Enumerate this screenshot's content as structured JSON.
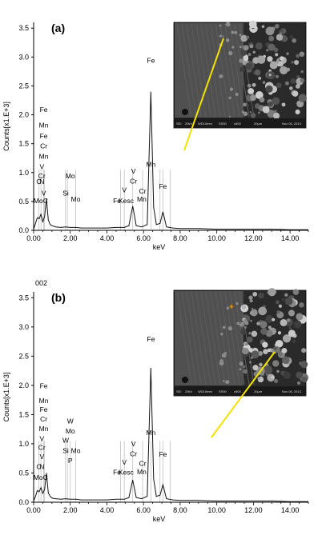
{
  "chart_data": [
    {
      "type": "line",
      "panel_label": "(a)",
      "header_text": "",
      "ylabel": "Counts[x1.E+3]",
      "xlabel": "keV",
      "xlim": [
        0,
        15
      ],
      "ylim": [
        0,
        3.6
      ],
      "xticks": [
        "0.00",
        "2.00",
        "4.00",
        "6.00",
        "8.00",
        "10.00",
        "12.00",
        "14.00"
      ],
      "yticks": [
        "0.0",
        "0.5",
        "1.0",
        "1.5",
        "2.0",
        "2.5",
        "3.0",
        "3.5"
      ],
      "spectrum": [
        [
          0,
          0.02
        ],
        [
          0.1,
          0.12
        ],
        [
          0.2,
          0.22
        ],
        [
          0.3,
          0.2
        ],
        [
          0.4,
          0.28
        ],
        [
          0.5,
          0.15
        ],
        [
          0.6,
          0.24
        ],
        [
          0.7,
          0.55
        ],
        [
          0.75,
          0.35
        ],
        [
          0.8,
          0.18
        ],
        [
          0.9,
          0.1
        ],
        [
          1.0,
          0.08
        ],
        [
          1.2,
          0.06
        ],
        [
          1.5,
          0.05
        ],
        [
          1.75,
          0.06
        ],
        [
          2.0,
          0.05
        ],
        [
          2.3,
          0.05
        ],
        [
          2.6,
          0.04
        ],
        [
          3.0,
          0.04
        ],
        [
          3.5,
          0.04
        ],
        [
          4.0,
          0.04
        ],
        [
          4.5,
          0.05
        ],
        [
          4.95,
          0.05
        ],
        [
          5.2,
          0.08
        ],
        [
          5.41,
          0.42
        ],
        [
          5.6,
          0.08
        ],
        [
          5.9,
          0.06
        ],
        [
          6.2,
          0.1
        ],
        [
          6.4,
          2.4
        ],
        [
          6.55,
          0.4
        ],
        [
          6.7,
          0.1
        ],
        [
          6.9,
          0.12
        ],
        [
          7.06,
          0.32
        ],
        [
          7.25,
          0.06
        ],
        [
          7.6,
          0.04
        ],
        [
          8.0,
          0.03
        ],
        [
          9.0,
          0.03
        ],
        [
          10.0,
          0.02
        ],
        [
          11.0,
          0.02
        ],
        [
          12.0,
          0.02
        ],
        [
          13.0,
          0.02
        ],
        [
          14.0,
          0.01
        ],
        [
          15.0,
          0.01
        ]
      ],
      "markers": [
        {
          "text": "Fe",
          "x": 0.55,
          "y": 2.05
        },
        {
          "text": "Mn",
          "x": 0.55,
          "y": 1.78
        },
        {
          "text": "Fe",
          "x": 0.55,
          "y": 1.59
        },
        {
          "text": "Cr",
          "x": 0.55,
          "y": 1.42
        },
        {
          "text": "Mn",
          "x": 0.55,
          "y": 1.24
        },
        {
          "text": "V",
          "x": 0.45,
          "y": 1.06
        },
        {
          "text": "Cr",
          "x": 0.45,
          "y": 0.9
        },
        {
          "text": "C",
          "x": 0.28,
          "y": 0.8
        },
        {
          "text": "N",
          "x": 0.45,
          "y": 0.8
        },
        {
          "text": "V",
          "x": 0.55,
          "y": 0.6
        },
        {
          "text": "Mo",
          "x": 0.25,
          "y": 0.47
        },
        {
          "text": "C",
          "x": 0.65,
          "y": 0.47
        },
        {
          "text": "Mo",
          "x": 2.0,
          "y": 0.9
        },
        {
          "text": "Si",
          "x": 1.75,
          "y": 0.6
        },
        {
          "text": "Mo",
          "x": 2.3,
          "y": 0.5
        },
        {
          "text": "Fe",
          "x": 4.55,
          "y": 0.47
        },
        {
          "text": "Kesc",
          "x": 5.05,
          "y": 0.47
        },
        {
          "text": "V",
          "x": 4.95,
          "y": 0.66
        },
        {
          "text": "V",
          "x": 5.45,
          "y": 0.98
        },
        {
          "text": "Cr",
          "x": 5.45,
          "y": 0.81
        },
        {
          "text": "Cr",
          "x": 5.95,
          "y": 0.64
        },
        {
          "text": "Mn",
          "x": 5.9,
          "y": 0.5
        },
        {
          "text": "Fe",
          "x": 6.4,
          "y": 2.9
        },
        {
          "text": "Mn",
          "x": 6.4,
          "y": 1.1
        },
        {
          "text": "Fe",
          "x": 7.06,
          "y": 0.72
        }
      ],
      "lines": [
        0.28,
        0.4,
        0.55,
        0.6,
        1.74,
        1.84,
        2.3,
        4.75,
        4.95,
        5.41,
        5.95,
        6.4,
        6.9,
        7.06,
        7.45
      ],
      "sem_image": {
        "scalebar": "",
        "has_marker": false,
        "info": [
          "SEI",
          "20kV",
          "WD10mm",
          "SS50",
          "x500",
          "20μm",
          "Nov 06, 2013"
        ]
      }
    },
    {
      "type": "line",
      "panel_label": "(b)",
      "header_text": "002",
      "ylabel": "Counts[x1.E+3]",
      "xlabel": "keV",
      "xlim": [
        0,
        15
      ],
      "ylim": [
        0,
        3.6
      ],
      "xticks": [
        "0.00",
        "2.00",
        "4.00",
        "6.00",
        "8.00",
        "10.00",
        "12.00",
        "14.00"
      ],
      "yticks": [
        "0.0",
        "0.5",
        "1.0",
        "1.5",
        "2.0",
        "2.5",
        "3.0",
        "3.5"
      ],
      "spectrum": [
        [
          0,
          0.02
        ],
        [
          0.1,
          0.1
        ],
        [
          0.2,
          0.2
        ],
        [
          0.3,
          0.18
        ],
        [
          0.4,
          0.25
        ],
        [
          0.5,
          0.15
        ],
        [
          0.6,
          0.22
        ],
        [
          0.7,
          0.5
        ],
        [
          0.75,
          0.32
        ],
        [
          0.8,
          0.16
        ],
        [
          0.9,
          0.1
        ],
        [
          1.0,
          0.07
        ],
        [
          1.2,
          0.06
        ],
        [
          1.5,
          0.05
        ],
        [
          1.75,
          0.06
        ],
        [
          2.0,
          0.05
        ],
        [
          2.3,
          0.05
        ],
        [
          2.6,
          0.04
        ],
        [
          3.0,
          0.04
        ],
        [
          3.5,
          0.04
        ],
        [
          4.0,
          0.04
        ],
        [
          4.5,
          0.05
        ],
        [
          4.95,
          0.05
        ],
        [
          5.2,
          0.08
        ],
        [
          5.41,
          0.38
        ],
        [
          5.6,
          0.08
        ],
        [
          5.9,
          0.06
        ],
        [
          6.2,
          0.1
        ],
        [
          6.4,
          2.3
        ],
        [
          6.55,
          0.4
        ],
        [
          6.7,
          0.1
        ],
        [
          6.9,
          0.12
        ],
        [
          7.06,
          0.3
        ],
        [
          7.25,
          0.06
        ],
        [
          7.6,
          0.04
        ],
        [
          8.0,
          0.03
        ],
        [
          9.0,
          0.03
        ],
        [
          10.0,
          0.02
        ],
        [
          11.0,
          0.02
        ],
        [
          12.0,
          0.02
        ],
        [
          13.0,
          0.02
        ],
        [
          14.0,
          0.01
        ],
        [
          15.0,
          0.01
        ]
      ],
      "markers": [
        {
          "text": "Fe",
          "x": 0.55,
          "y": 1.95
        },
        {
          "text": "Mn",
          "x": 0.55,
          "y": 1.7
        },
        {
          "text": "Fe",
          "x": 0.55,
          "y": 1.55
        },
        {
          "text": "Cr",
          "x": 0.55,
          "y": 1.38
        },
        {
          "text": "Mn",
          "x": 0.55,
          "y": 1.22
        },
        {
          "text": "V",
          "x": 0.45,
          "y": 1.05
        },
        {
          "text": "Cr",
          "x": 0.45,
          "y": 0.9
        },
        {
          "text": "V",
          "x": 0.45,
          "y": 0.74
        },
        {
          "text": "C",
          "x": 0.28,
          "y": 0.57
        },
        {
          "text": "N",
          "x": 0.45,
          "y": 0.57
        },
        {
          "text": "Mo",
          "x": 0.25,
          "y": 0.38
        },
        {
          "text": "C",
          "x": 0.65,
          "y": 0.38
        },
        {
          "text": "W",
          "x": 2.0,
          "y": 1.35
        },
        {
          "text": "Mo",
          "x": 2.0,
          "y": 1.18
        },
        {
          "text": "W",
          "x": 1.75,
          "y": 1.02
        },
        {
          "text": "Si",
          "x": 1.75,
          "y": 0.84
        },
        {
          "text": "Mo",
          "x": 2.3,
          "y": 0.84
        },
        {
          "text": "P",
          "x": 2.0,
          "y": 0.67
        },
        {
          "text": "Fe",
          "x": 4.55,
          "y": 0.47
        },
        {
          "text": "Kesc",
          "x": 5.05,
          "y": 0.47
        },
        {
          "text": "V",
          "x": 4.95,
          "y": 0.64
        },
        {
          "text": "V",
          "x": 5.45,
          "y": 0.96
        },
        {
          "text": "Cr",
          "x": 5.45,
          "y": 0.79
        },
        {
          "text": "Cr",
          "x": 5.95,
          "y": 0.62
        },
        {
          "text": "Mn",
          "x": 5.9,
          "y": 0.48
        },
        {
          "text": "Fe",
          "x": 6.4,
          "y": 2.75
        },
        {
          "text": "Mn",
          "x": 6.4,
          "y": 1.15
        },
        {
          "text": "Fe",
          "x": 7.06,
          "y": 0.78
        }
      ],
      "lines": [
        0.28,
        0.4,
        0.55,
        0.6,
        1.74,
        1.84,
        2.0,
        2.3,
        4.75,
        4.95,
        5.41,
        5.95,
        6.4,
        6.9,
        7.06,
        7.45
      ],
      "sem_image": {
        "scalebar": "",
        "has_marker": true,
        "info": [
          "SEI",
          "20kV",
          "WD10mm",
          "SS50",
          "x500",
          "20μm",
          "Nov 06, 2013"
        ]
      }
    }
  ],
  "colors": {
    "axis": "#000000",
    "spectrum": "#111111",
    "peak_line": "#b8b8b8",
    "pointer": "#f2e200",
    "sem_bg": "#2a2a2a"
  }
}
